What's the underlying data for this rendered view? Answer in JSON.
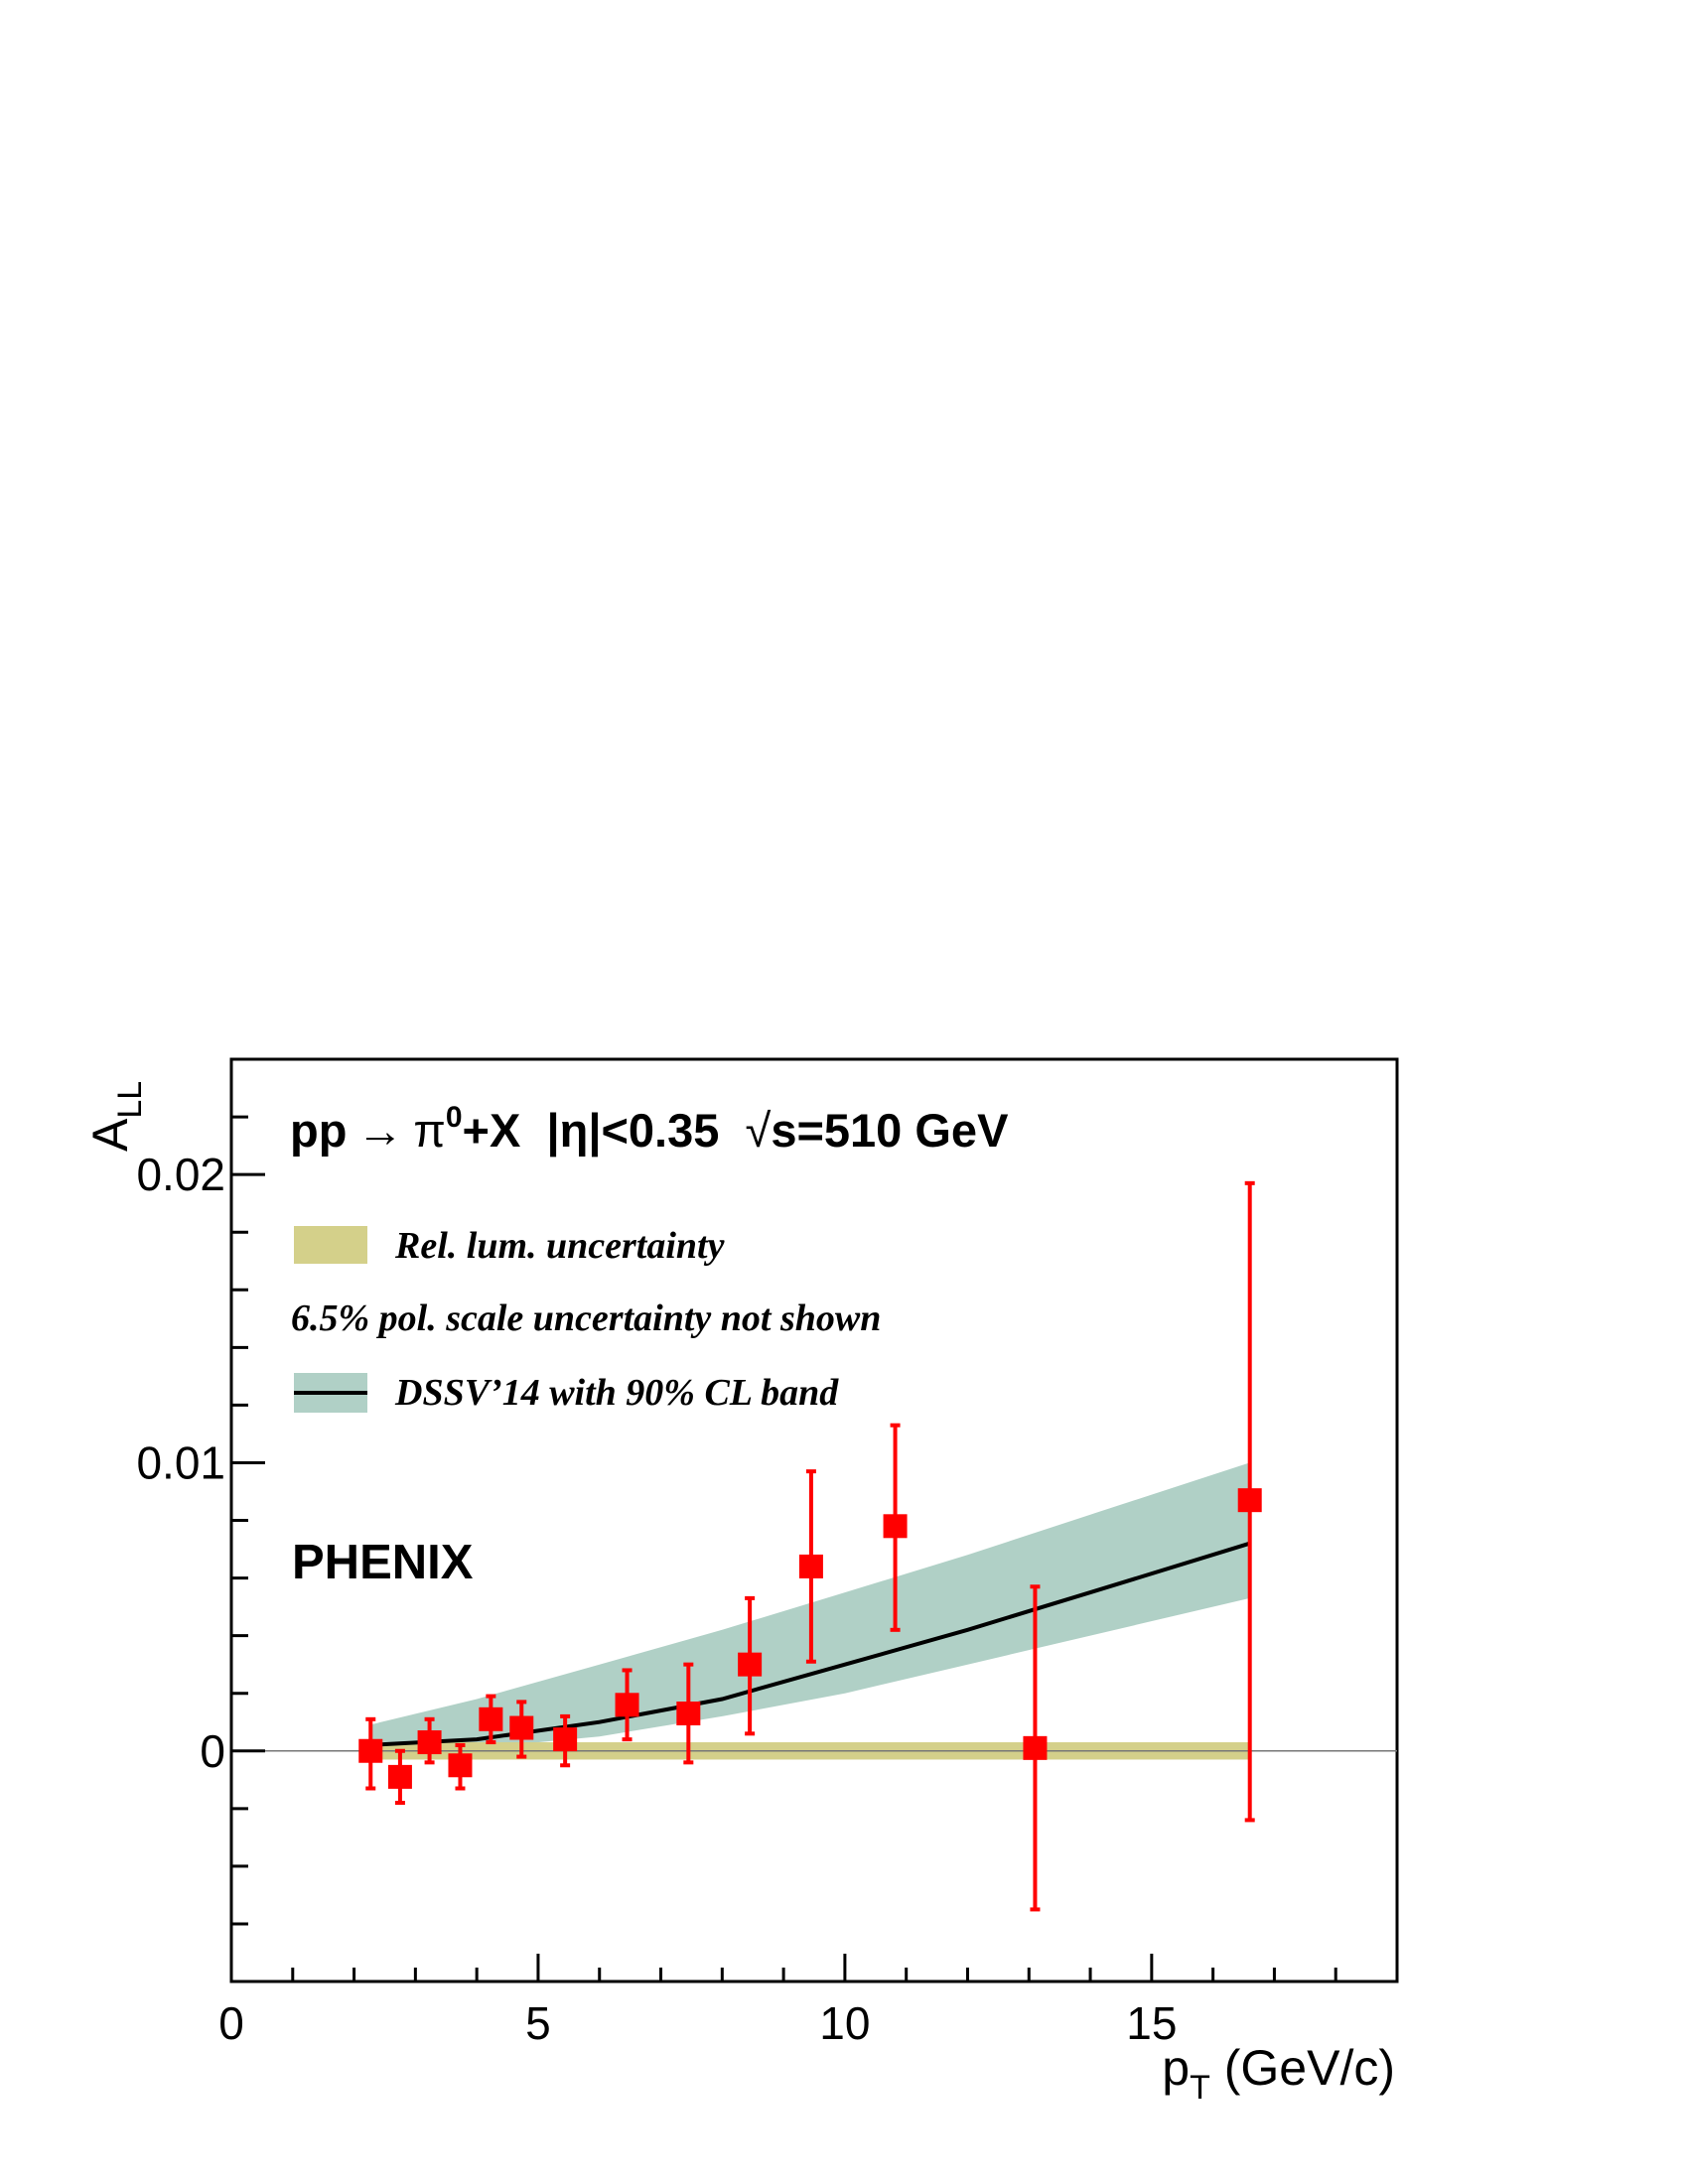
{
  "chart_data": {
    "type": "scatter",
    "header": {
      "part1": "pp",
      "arrow": "→",
      "pi": "π",
      "pi_sup": "0",
      "part2": "+X  |η|<0.35  ",
      "root": "√",
      "part3": "s=510 GeV"
    },
    "xlabel": "p",
    "xlabel_sub": "T",
    "xlabel_unit": " (GeV/c)",
    "ylabel": "A",
    "ylabel_sub": "LL",
    "xlim": [
      0,
      19
    ],
    "ylim": [
      -0.008,
      0.024
    ],
    "x_ticks": [
      {
        "value": 0,
        "label": "0"
      },
      {
        "value": 5,
        "label": "5"
      },
      {
        "value": 10,
        "label": "10"
      },
      {
        "value": 15,
        "label": "15"
      }
    ],
    "y_ticks": [
      {
        "value": 0,
        "label": "0"
      },
      {
        "value": 0.01,
        "label": "0.01"
      },
      {
        "value": 0.02,
        "label": "0.02"
      }
    ],
    "legend": {
      "rel_lum": "Rel. lum. uncertainty",
      "pol_scale": "6.5% pol. scale uncertainty not shown",
      "dssv": "DSSV’14 with 90% CL band"
    },
    "experiment_label": "PHENIX",
    "colors": {
      "data": "#ff0000",
      "rel_lum_band": "#d4d08a",
      "cl_band": "#b0d0c6",
      "curve": "#000000"
    },
    "rel_lum_band": {
      "x": [
        2.25,
        16.6
      ],
      "y_low": -0.0003,
      "y_high": 0.0003
    },
    "series": [
      {
        "name": "PHENIX data",
        "points": [
          {
            "x": 2.27,
            "y": 0.0,
            "err_low": 0.0013,
            "err_high": 0.0011
          },
          {
            "x": 2.75,
            "y": -0.0009,
            "err_low": 0.0009,
            "err_high": 0.0009
          },
          {
            "x": 3.23,
            "y": 0.0003,
            "err_low": 0.0007,
            "err_high": 0.0008
          },
          {
            "x": 3.73,
            "y": -0.0005,
            "err_low": 0.0008,
            "err_high": 0.0007
          },
          {
            "x": 4.23,
            "y": 0.0011,
            "err_low": 0.0008,
            "err_high": 0.0008
          },
          {
            "x": 4.73,
            "y": 0.0008,
            "err_low": 0.001,
            "err_high": 0.0009
          },
          {
            "x": 5.44,
            "y": 0.0004,
            "err_low": 0.0009,
            "err_high": 0.0008
          },
          {
            "x": 6.45,
            "y": 0.0016,
            "err_low": 0.0012,
            "err_high": 0.0012
          },
          {
            "x": 7.45,
            "y": 0.0013,
            "err_low": 0.0017,
            "err_high": 0.0017
          },
          {
            "x": 8.45,
            "y": 0.003,
            "err_low": 0.0024,
            "err_high": 0.0023
          },
          {
            "x": 9.45,
            "y": 0.0064,
            "err_low": 0.0033,
            "err_high": 0.0033
          },
          {
            "x": 10.82,
            "y": 0.0078,
            "err_low": 0.0036,
            "err_high": 0.0035
          },
          {
            "x": 13.1,
            "y": 0.0001,
            "err_low": 0.0056,
            "err_high": 0.0056
          },
          {
            "x": 16.6,
            "y": 0.0087,
            "err_low": 0.0111,
            "err_high": 0.011
          }
        ]
      },
      {
        "name": "DSSV’14",
        "curve": {
          "x": [
            2.25,
            4.0,
            6.0,
            8.0,
            10.0,
            12.0,
            14.0,
            16.6
          ],
          "y": [
            0.0002,
            0.0004,
            0.001,
            0.0018,
            0.003,
            0.0042,
            0.0055,
            0.0072
          ]
        },
        "band": {
          "x": [
            2.25,
            4.0,
            6.0,
            8.0,
            10.0,
            12.0,
            14.0,
            16.6
          ],
          "y_low": [
            0.0,
            0.0001,
            0.0005,
            0.0012,
            0.002,
            0.003,
            0.004,
            0.0053
          ],
          "y_high": [
            0.0009,
            0.0018,
            0.003,
            0.0042,
            0.0055,
            0.0068,
            0.0082,
            0.01
          ]
        }
      }
    ]
  }
}
